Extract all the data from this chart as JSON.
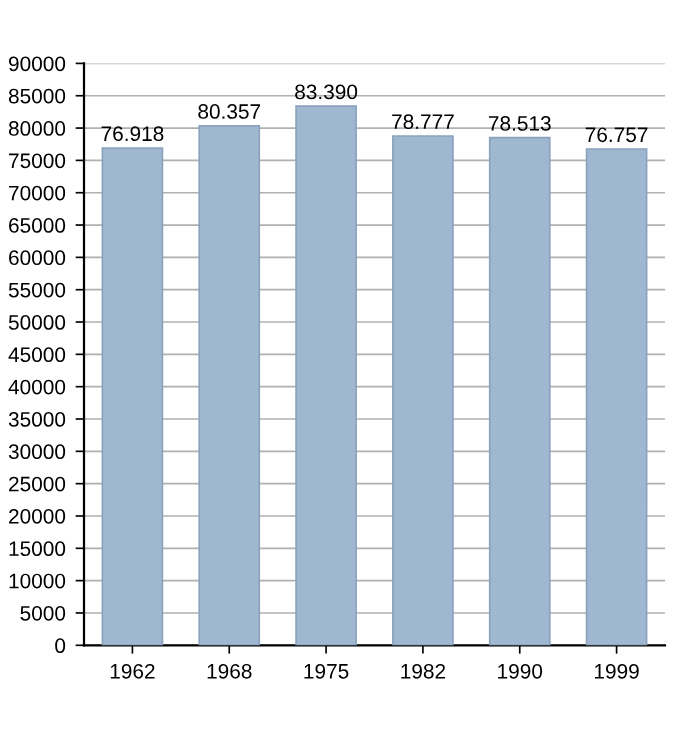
{
  "chart_data": {
    "type": "bar",
    "categories": [
      "1962",
      "1968",
      "1975",
      "1982",
      "1990",
      "1999"
    ],
    "values": [
      76918,
      80357,
      83390,
      78777,
      78513,
      76757
    ],
    "value_labels": [
      "76.918",
      "80.357",
      "83.390",
      "78.777",
      "78.513",
      "76.757"
    ],
    "color": "#9fb7d1",
    "ylim": [
      0,
      90000
    ],
    "yticks": [
      0,
      5000,
      10000,
      15000,
      20000,
      25000,
      30000,
      35000,
      40000,
      45000,
      50000,
      55000,
      60000,
      65000,
      70000,
      75000,
      80000,
      85000,
      90000
    ],
    "grid": "y"
  }
}
